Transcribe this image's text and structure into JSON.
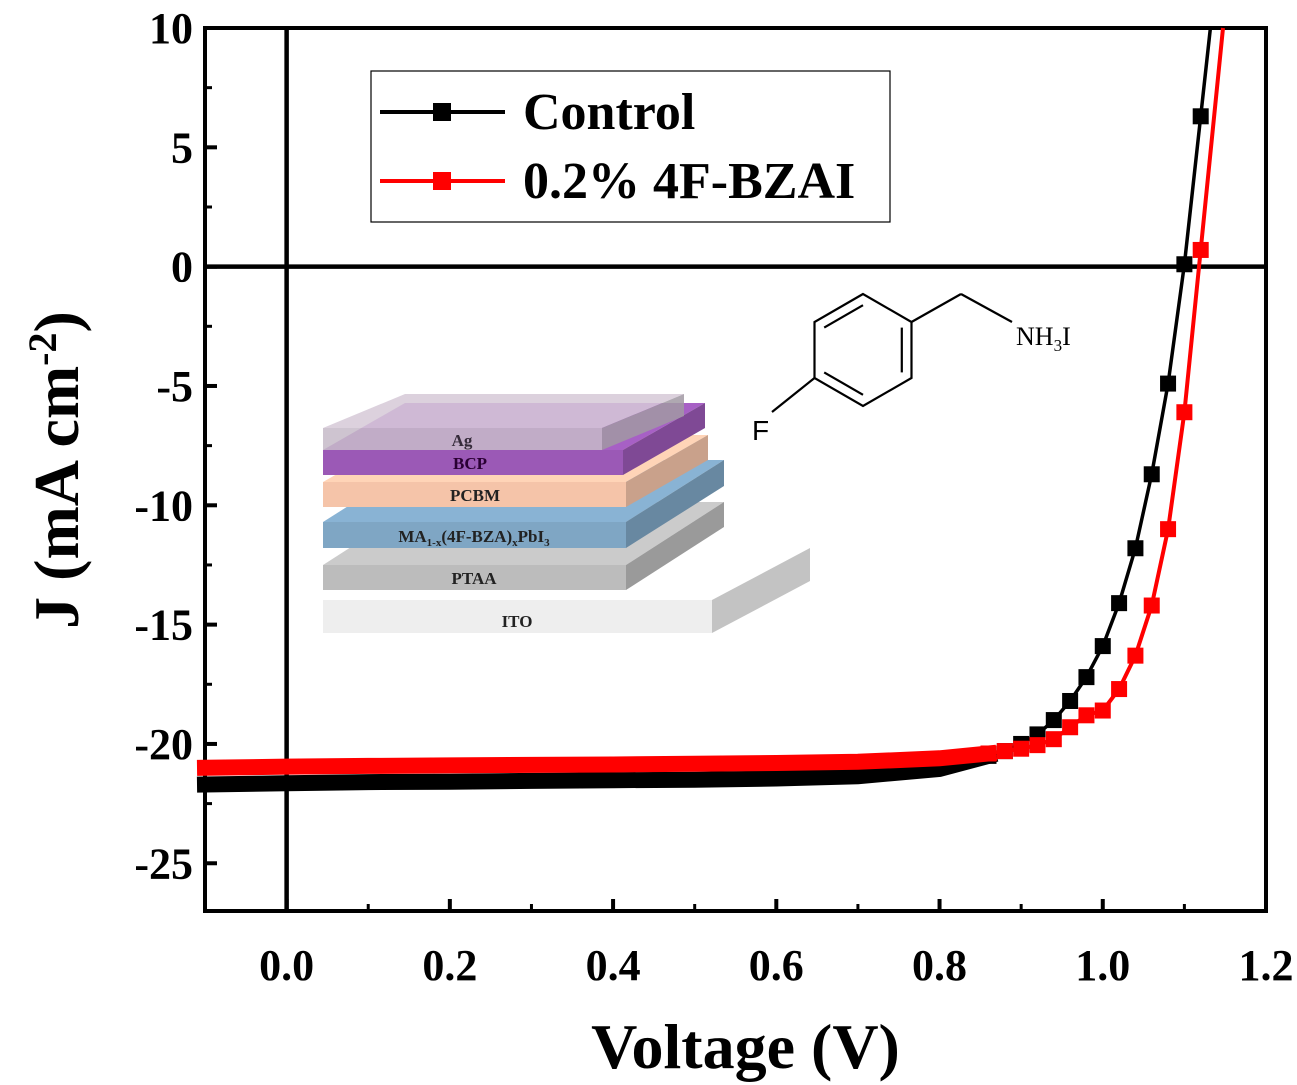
{
  "chart_data": {
    "type": "line",
    "xlabel": "Voltage (V)",
    "ylabel": "J (mA cm-2)",
    "ylabel_parts": {
      "main": "J (mA cm",
      "sup": "-2",
      "close": ")"
    },
    "xlim": [
      -0.1,
      1.2
    ],
    "ylim": [
      -27,
      10
    ],
    "xticks": [
      0.0,
      0.2,
      0.4,
      0.6,
      0.8,
      1.0,
      1.2
    ],
    "xtick_labels": [
      "0.0",
      "0.2",
      "0.4",
      "0.6",
      "0.8",
      "1.0",
      "1.2"
    ],
    "yticks": [
      10,
      5,
      0,
      -5,
      -10,
      -15,
      -20,
      -25
    ],
    "ytick_labels": [
      "10",
      "5",
      "0",
      "-5",
      "-10",
      "-15",
      "-20",
      "-25"
    ],
    "zero_lines": true,
    "grid": false,
    "legend_position": "top-left",
    "series": [
      {
        "name": "Control",
        "color": "#000000",
        "marker": "square",
        "curve": {
          "jsc": -21.6,
          "voc": 1.1,
          "n": 1.35,
          "rs": 0.5
        },
        "points": [
          [
            -0.1,
            -21.7
          ],
          [
            0.0,
            -21.65
          ],
          [
            0.1,
            -21.6
          ],
          [
            0.2,
            -21.58
          ],
          [
            0.3,
            -21.55
          ],
          [
            0.4,
            -21.52
          ],
          [
            0.5,
            -21.5
          ],
          [
            0.6,
            -21.45
          ],
          [
            0.7,
            -21.35
          ],
          [
            0.8,
            -21.05
          ],
          [
            0.86,
            -20.5
          ],
          [
            0.88,
            -20.3
          ],
          [
            0.9,
            -20.0
          ],
          [
            0.92,
            -19.6
          ],
          [
            0.94,
            -19.0
          ],
          [
            0.96,
            -18.2
          ],
          [
            0.98,
            -17.2
          ],
          [
            1.0,
            -15.9
          ],
          [
            1.02,
            -14.1
          ],
          [
            1.04,
            -11.8
          ],
          [
            1.06,
            -8.7
          ],
          [
            1.08,
            -4.9
          ],
          [
            1.1,
            0.1
          ],
          [
            1.12,
            6.3
          ]
        ]
      },
      {
        "name": "0.2% 4F-BZAI",
        "color": "#ff0000",
        "marker": "square",
        "curve": {
          "jsc": -21.0,
          "voc": 1.118,
          "n": 1.2,
          "rs": 0.3
        },
        "points": [
          [
            -0.1,
            -21.0
          ],
          [
            0.0,
            -20.95
          ],
          [
            0.1,
            -20.92
          ],
          [
            0.2,
            -20.9
          ],
          [
            0.3,
            -20.88
          ],
          [
            0.4,
            -20.86
          ],
          [
            0.5,
            -20.83
          ],
          [
            0.6,
            -20.8
          ],
          [
            0.7,
            -20.75
          ],
          [
            0.8,
            -20.6
          ],
          [
            0.86,
            -20.4
          ],
          [
            0.88,
            -20.3
          ],
          [
            0.9,
            -20.2
          ],
          [
            0.92,
            -20.05
          ],
          [
            0.94,
            -19.8
          ],
          [
            0.96,
            -19.3
          ],
          [
            0.98,
            -18.8
          ],
          [
            1.0,
            -18.6
          ],
          [
            1.02,
            -17.7
          ],
          [
            1.04,
            -16.3
          ],
          [
            1.06,
            -14.2
          ],
          [
            1.08,
            -11.0
          ],
          [
            1.1,
            -6.1
          ],
          [
            1.12,
            0.7
          ]
        ]
      }
    ]
  },
  "inset": {
    "layers": [
      {
        "label": "Ag",
        "color": "#c6bac8"
      },
      {
        "label": "BCP",
        "color": "#9b59b6"
      },
      {
        "label": "PCBM",
        "color": "#f5c4a9"
      },
      {
        "label_parts": [
          "MA",
          "1-x",
          "(4F-BZA)",
          "x",
          "PbI",
          "3"
        ],
        "color": "#7fa6c4"
      },
      {
        "label": "PTAA",
        "color": "#bcbcbc"
      },
      {
        "label": "ITO",
        "color": "#eeeeee"
      }
    ],
    "molecule": {
      "fluorine": "F",
      "amine_parts": [
        "NH",
        "3",
        "I"
      ]
    }
  }
}
